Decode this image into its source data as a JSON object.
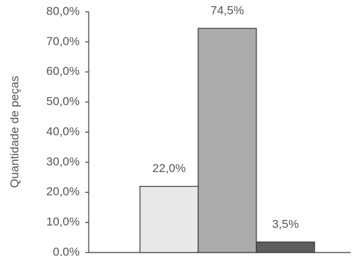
{
  "chart_data": {
    "type": "bar",
    "y_label": "Quantidade de peças",
    "categories": [
      null,
      null,
      null
    ],
    "values": [
      22.0,
      74.5,
      3.5
    ],
    "value_labels": [
      "22,0%",
      "74,5%",
      "3,5%"
    ],
    "colors": [
      "#e8e8e8",
      "#ababab",
      "#5e5e5e"
    ],
    "ylim": [
      0,
      80
    ],
    "yticks": [
      {
        "value": 0,
        "label": "0,0%"
      },
      {
        "value": 10,
        "label": "10,0%"
      },
      {
        "value": 20,
        "label": "20,0%"
      },
      {
        "value": 30,
        "label": "30,0%"
      },
      {
        "value": 40,
        "label": "40,0%"
      },
      {
        "value": 50,
        "label": "50,0%"
      },
      {
        "value": 60,
        "label": "60,0%"
      },
      {
        "value": 70,
        "label": "70,0%"
      },
      {
        "value": 80,
        "label": "80,0%"
      }
    ],
    "grid": false
  }
}
